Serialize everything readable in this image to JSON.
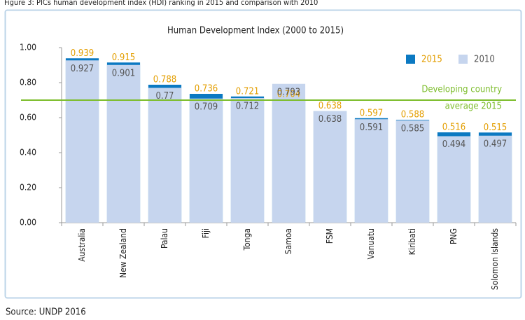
{
  "caption": "Figure 3: PICs human development index (HDI) ranking in 2015 and comparison with 2010",
  "source": "Source: UNDP 2016",
  "chart_data": {
    "type": "bar",
    "title": "Human Development Index (2000 to 2015)",
    "categories": [
      "Australia",
      "New Zealand",
      "Palau",
      "Fiji",
      "Tonga",
      "Samoa",
      "FSM",
      "Vanuatu",
      "Kiribati",
      "PNG",
      "Solomon Islands"
    ],
    "series": [
      {
        "name": "2015",
        "color": "#0b79c2",
        "label_color": "#e39e00",
        "values": [
          0.939,
          0.915,
          0.788,
          0.736,
          0.721,
          0.704,
          0.638,
          0.597,
          0.588,
          0.516,
          0.515
        ]
      },
      {
        "name": "2010",
        "color": "#c6d5ee",
        "label_color": "#555555",
        "values": [
          0.927,
          0.901,
          0.77,
          0.709,
          0.712,
          0.793,
          0.638,
          0.591,
          0.585,
          0.494,
          0.497
        ]
      }
    ],
    "ylim": [
      0,
      1
    ],
    "yticks": [
      {
        "value": 0,
        "label": "0.00"
      },
      {
        "value": 0.2,
        "label": "0.20"
      },
      {
        "value": 0.4,
        "label": "0.40"
      },
      {
        "value": 0.6,
        "label": "0.60"
      },
      {
        "value": 0.8,
        "label": "0.80"
      },
      {
        "value": 1,
        "label": "1.00"
      }
    ],
    "reference_line": {
      "value": 0.7,
      "color": "#7dbd2c",
      "label": [
        "Developing country",
        "average 2015"
      ]
    },
    "legend": "top-right"
  }
}
